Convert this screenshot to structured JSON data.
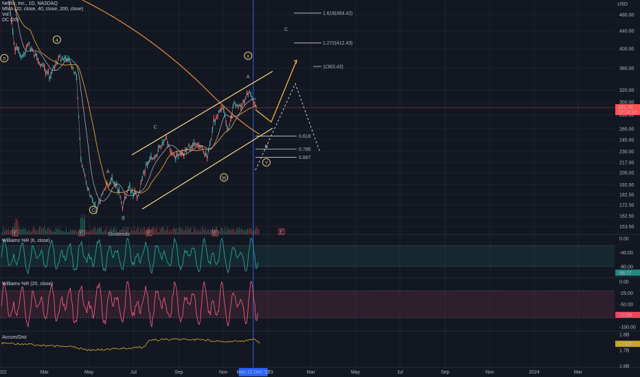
{
  "legend": {
    "title": "Netflix, Inc., 1D, NASDAQ",
    "lines": [
      "MMA (20, close, 40, close, 200, close)",
      "Vol",
      "DC (20)"
    ]
  },
  "currency": "USD",
  "panes": {
    "williams1_title": "Williams %R (6, close)",
    "williams2_title": "Williams %R (20, close)",
    "accum_title": "Accum/Dist"
  },
  "colors": {
    "background": "#131722",
    "grid": "#1e222d",
    "price_line": "#ff5252",
    "crosshair": "#2962ff",
    "channel": "#ffe082",
    "projection": "#f5b942",
    "ma_slow": "#e69138",
    "wr1": "#26a69a",
    "wr2": "#ef5b7d",
    "accum": "#c9a227"
  },
  "chart_data": [
    {
      "type": "line",
      "pane": "price",
      "x_ticks": [
        "2022",
        "Mar",
        "May",
        "Jul",
        "Sep",
        "Nov",
        "2023",
        "Mar",
        "May",
        "Jul",
        "Sep",
        "Nov",
        "2024",
        "Mar"
      ],
      "y_ticks": [
        480.0,
        440.0,
        400.0,
        360.0,
        320.0,
        300.0,
        280.0,
        260.0,
        245.0,
        230.0,
        217.0,
        205.0,
        192.5,
        182.5,
        172.5,
        162.5,
        153.5
      ],
      "y_scale": "log",
      "last_price": "291.70",
      "last_price_sub": "12:13:23",
      "crosshair_label": "Mon 12 Dec '22",
      "close_points": [
        {
          "x": "2022-01-03",
          "y": 600
        },
        {
          "x": "2022-01-10",
          "y": 530
        },
        {
          "x": "2022-01-20",
          "y": 400
        },
        {
          "x": "2022-01-28",
          "y": 385
        },
        {
          "x": "2022-02-08",
          "y": 405
        },
        {
          "x": "2022-02-22",
          "y": 375
        },
        {
          "x": "2022-03-08",
          "y": 345
        },
        {
          "x": "2022-03-22",
          "y": 380
        },
        {
          "x": "2022-04-04",
          "y": 378
        },
        {
          "x": "2022-04-14",
          "y": 340
        },
        {
          "x": "2022-04-20",
          "y": 220
        },
        {
          "x": "2022-04-29",
          "y": 190
        },
        {
          "x": "2022-05-11",
          "y": 168
        },
        {
          "x": "2022-05-20",
          "y": 185
        },
        {
          "x": "2022-05-31",
          "y": 198
        },
        {
          "x": "2022-06-08",
          "y": 192
        },
        {
          "x": "2022-06-16",
          "y": 172
        },
        {
          "x": "2022-06-24",
          "y": 190
        },
        {
          "x": "2022-07-06",
          "y": 180
        },
        {
          "x": "2022-07-20",
          "y": 218
        },
        {
          "x": "2022-08-04",
          "y": 230
        },
        {
          "x": "2022-08-15",
          "y": 245
        },
        {
          "x": "2022-08-26",
          "y": 223
        },
        {
          "x": "2022-09-08",
          "y": 228
        },
        {
          "x": "2022-09-20",
          "y": 240
        },
        {
          "x": "2022-09-30",
          "y": 236
        },
        {
          "x": "2022-10-10",
          "y": 222
        },
        {
          "x": "2022-10-19",
          "y": 270
        },
        {
          "x": "2022-10-31",
          "y": 291
        },
        {
          "x": "2022-11-08",
          "y": 255
        },
        {
          "x": "2022-11-16",
          "y": 300
        },
        {
          "x": "2022-11-25",
          "y": 290
        },
        {
          "x": "2022-12-05",
          "y": 318
        },
        {
          "x": "2022-12-16",
          "y": 292
        }
      ],
      "wave_labels": [
        {
          "label": "5",
          "x": "2022-01-05",
          "y": 380,
          "circled": true
        },
        {
          "label": "4",
          "x": "2022-03-18",
          "y": 420,
          "circled": true
        },
        {
          "label": "A",
          "x": "2022-05-27",
          "y": 207,
          "circled": false
        },
        {
          "label": "C",
          "x": "2022-05-07",
          "y": 168,
          "circled": true
        },
        {
          "label": "B",
          "x": "2022-06-17",
          "y": 161,
          "circled": false
        },
        {
          "label": "C",
          "x": "2022-07-31",
          "y": 263,
          "circled": false
        },
        {
          "label": "W",
          "x": "2022-11-02",
          "y": 200,
          "circled": true
        },
        {
          "label": "X",
          "x": "2022-12-05",
          "y": 385,
          "circled": true
        },
        {
          "label": "A",
          "x": "2022-12-05",
          "y": 345,
          "circled": false
        },
        {
          "label": "B",
          "x": "2022-12-30",
          "y": 237,
          "circled": false
        },
        {
          "label": "Y",
          "x": "2022-12-30",
          "y": 217,
          "circled": true
        },
        {
          "label": "C",
          "x": "2023-01-26",
          "y": 445,
          "circled": false
        }
      ],
      "fib_levels": [
        {
          "label": "1.618(484.42)",
          "y": 484.42
        },
        {
          "label": "1.272(412.43)",
          "y": 412.43
        },
        {
          "label": "1(363.43)",
          "y": 363.43
        },
        {
          "label": "0.618",
          "y": 250
        },
        {
          "label": "0.786",
          "y": 233
        },
        {
          "label": "0.887",
          "y": 223
        }
      ],
      "markers": [
        "E",
        "E",
        "E",
        "E",
        "E"
      ],
      "dividend_label": "Dividends"
    },
    {
      "type": "line",
      "pane": "williams_r_6",
      "y_ticks": [
        "0.00",
        "-40.00",
        "-80.00"
      ],
      "y_range": [
        -100,
        0
      ],
      "last_value": "-96.77"
    },
    {
      "type": "line",
      "pane": "williams_r_20",
      "y_ticks": [
        "0.00",
        "-25.00",
        "-50.00",
        "-100.00"
      ],
      "y_range": [
        -100,
        0
      ],
      "last_value": "-72.58"
    },
    {
      "type": "line",
      "pane": "accum_dist",
      "y_ticks": [
        "1.8B",
        "1.7B",
        "1.6B"
      ],
      "last_value": "1.743B"
    }
  ]
}
